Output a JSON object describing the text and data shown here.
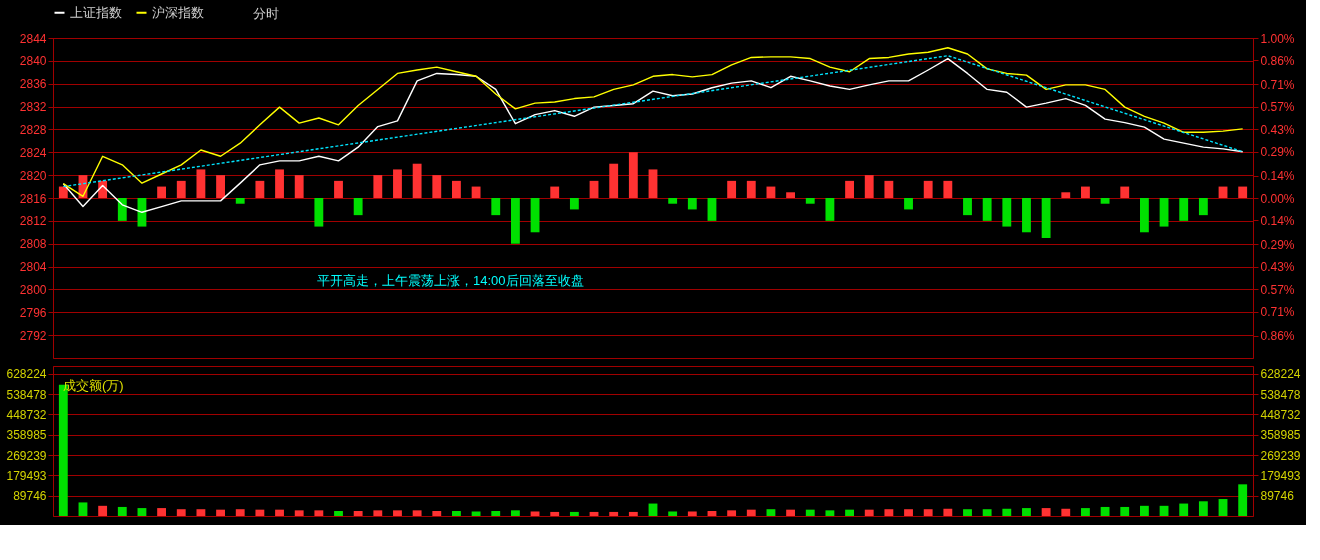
{
  "chart_data": [
    {
      "type": "line",
      "categories": [
        null,
        null,
        null,
        null,
        null,
        null,
        null,
        null,
        null,
        null,
        null,
        null,
        null,
        null,
        null,
        null,
        null,
        null,
        null,
        null,
        null,
        null,
        null,
        null,
        null,
        null,
        null,
        null,
        null,
        null,
        null,
        null,
        null,
        null,
        null,
        null,
        null,
        null,
        null,
        null,
        null,
        null,
        null,
        null,
        null,
        null,
        null,
        null,
        null,
        null,
        null,
        null,
        null,
        null,
        null,
        null,
        null,
        null,
        null,
        null,
        null
      ],
      "ylim": [
        2788,
        2844
      ],
      "yticks": [
        2792,
        2796,
        2800,
        2804,
        2808,
        2812,
        2816,
        2820,
        2824,
        2828,
        2832,
        2836,
        2840,
        2844
      ],
      "y2lim": [
        -1.0,
        1.0
      ],
      "y2ticks": [
        {
          "value": 1.0,
          "label": "1.00%"
        },
        {
          "value": 0.86,
          "label": "0.86%"
        },
        {
          "value": 0.71,
          "label": "0.71%"
        },
        {
          "value": 0.57,
          "label": "0.57%"
        },
        {
          "value": 0.43,
          "label": "0.43%"
        },
        {
          "value": 0.29,
          "label": "0.29%"
        },
        {
          "value": 0.14,
          "label": "0.14%"
        },
        {
          "value": 0,
          "label": "0.00%"
        },
        {
          "value": -0.14,
          "label": "0.14%"
        },
        {
          "value": -0.29,
          "label": "0.29%"
        },
        {
          "value": -0.43,
          "label": "0.43%"
        },
        {
          "value": -0.57,
          "label": "0.57%"
        },
        {
          "value": -0.71,
          "label": "0.71%"
        },
        {
          "value": -0.86,
          "label": "0.86%"
        }
      ],
      "grid": "y",
      "legend": "top",
      "tick_labels": "y",
      "annotations": [
        "分时",
        "平开高走，上午震荡上涨，14:00后回落至收盘"
      ],
      "series": [
        {
          "type": "bar",
          "base": [
            2816,
            2816,
            2816,
            2816,
            2816,
            2816,
            2816,
            2816,
            2816,
            2816,
            2816,
            2816,
            2816,
            2816,
            2816,
            2816,
            2816,
            2816,
            2816,
            2816,
            2816,
            2816,
            2816,
            2816,
            2816,
            2816,
            2816,
            2816,
            2816,
            2816,
            2816,
            2816,
            2816,
            2816,
            2816,
            2816,
            2816,
            2816,
            2816,
            2816,
            2816,
            2816,
            2816,
            2816,
            2816,
            2816,
            2816,
            2816,
            2816,
            2816,
            2816,
            2816,
            2816,
            2816,
            2816,
            2816,
            2816,
            2816,
            2816,
            2816,
            2816
          ],
          "values": [
            2,
            4,
            3,
            -4,
            -5,
            2,
            3,
            5,
            4,
            -1,
            3,
            5,
            4,
            -5,
            3,
            -3,
            4,
            5,
            6,
            4,
            3,
            2,
            -3,
            -8,
            -6,
            2,
            -2,
            3,
            6,
            8,
            5,
            -1,
            -2,
            -4,
            3,
            3,
            2,
            1,
            -1,
            -4,
            3,
            4,
            3,
            -2,
            3,
            3,
            -3,
            -4,
            -5,
            -6,
            -7,
            1,
            2,
            -1,
            2,
            -6,
            -5,
            -4,
            -3,
            2,
            2
          ],
          "colors": [
            "#ff3232",
            "#ff3232",
            "#ff3232",
            "#00e000",
            "#00e000",
            "#ff3232",
            "#ff3232",
            "#ff3232",
            "#ff3232",
            "#00e000",
            "#ff3232",
            "#ff3232",
            "#ff3232",
            "#00e000",
            "#ff3232",
            "#00e000",
            "#ff3232",
            "#ff3232",
            "#ff3232",
            "#ff3232",
            "#ff3232",
            "#ff3232",
            "#00e000",
            "#00e000",
            "#00e000",
            "#ff3232",
            "#00e000",
            "#ff3232",
            "#ff3232",
            "#ff3232",
            "#ff3232",
            "#00e000",
            "#00e000",
            "#00e000",
            "#ff3232",
            "#ff3232",
            "#ff3232",
            "#ff3232",
            "#00e000",
            "#00e000",
            "#ff3232",
            "#ff3232",
            "#ff3232",
            "#00e000",
            "#ff3232",
            "#ff3232",
            "#00e000",
            "#00e000",
            "#00e000",
            "#00e000",
            "#00e000",
            "#ff3232",
            "#ff3232",
            "#00e000",
            "#ff3232",
            "#00e000",
            "#00e000",
            "#00e000",
            "#00e000",
            "#ff3232",
            "#ff3232"
          ]
        },
        {
          "name": "上证指数",
          "color": "#ffffff",
          "values": [
            2818.5,
            2814.5,
            2818.2,
            2814.8,
            2813.5,
            2814.5,
            2815.5,
            2815.5,
            2815.5,
            2818.6,
            2821.8,
            2822.5,
            2822.5,
            2823.3,
            2822.5,
            2824.9,
            2828.5,
            2829.5,
            2836.5,
            2837.8,
            2837.6,
            2837.3,
            2835,
            2829,
            2830.6,
            2831.3,
            2830.3,
            2831.9,
            2832.2,
            2832.5,
            2834.7,
            2833.9,
            2834.2,
            2835.3,
            2836.1,
            2836.5,
            2835.3,
            2837.3,
            2836.5,
            2835.6,
            2835,
            2835.8,
            2836.5,
            2836.5,
            2838.4,
            2840.4,
            2837.8,
            2835,
            2834.5,
            2831.9,
            2832.6,
            2833.4,
            2832.2,
            2829.8,
            2829.2,
            2828.4,
            2826.3,
            2825.6,
            2824.9,
            2824.6,
            2824.1
          ]
        },
        {
          "name": "沪深指数",
          "color": "#ffff00",
          "values": [
            2818.5,
            2816.3,
            2823.3,
            2821.8,
            2818.6,
            2820.2,
            2821.8,
            2824.4,
            2823.3,
            2825.6,
            2828.8,
            2831.9,
            2829.1,
            2830,
            2828.8,
            2832.2,
            2835,
            2837.8,
            2838.4,
            2838.9,
            2838.1,
            2837.3,
            2834.2,
            2831.6,
            2832.6,
            2832.8,
            2833.4,
            2833.7,
            2835,
            2835.8,
            2837.3,
            2837.6,
            2837.2,
            2837.6,
            2839.3,
            2840.6,
            2840.7,
            2840.7,
            2840.4,
            2838.9,
            2838.1,
            2840.4,
            2840.6,
            2841.2,
            2841.5,
            2842.3,
            2841.2,
            2838.6,
            2837.8,
            2837.5,
            2835,
            2835.8,
            2835.8,
            2835,
            2831.9,
            2830.3,
            2829.1,
            2827.5,
            2827.5,
            2827.7,
            2828.1
          ]
        },
        {
          "type": "line",
          "color": "#00e5ff",
          "line_style": "dashed",
          "values": [
            2818,
            null,
            null,
            null,
            null,
            null,
            null,
            null,
            null,
            null,
            null,
            null,
            null,
            null,
            null,
            null,
            null,
            null,
            null,
            null,
            null,
            null,
            null,
            null,
            null,
            null,
            null,
            null,
            null,
            null,
            null,
            null,
            null,
            null,
            null,
            null,
            null,
            null,
            null,
            null,
            null,
            null,
            null,
            null,
            null,
            2840.9,
            null,
            null,
            null,
            null,
            null,
            null,
            null,
            null,
            null,
            null,
            null,
            null,
            null,
            null,
            2824.1
          ]
        }
      ]
    },
    {
      "type": "bar",
      "title": "成交额(万)",
      "categories": [
        null,
        null,
        null,
        null,
        null,
        null,
        null,
        null,
        null,
        null,
        null,
        null,
        null,
        null,
        null,
        null,
        null,
        null,
        null,
        null,
        null,
        null,
        null,
        null,
        null,
        null,
        null,
        null,
        null,
        null,
        null,
        null,
        null,
        null,
        null,
        null,
        null,
        null,
        null,
        null,
        null,
        null,
        null,
        null,
        null,
        null,
        null,
        null,
        null,
        null,
        null,
        null,
        null,
        null,
        null,
        null,
        null,
        null,
        null,
        null,
        null
      ],
      "ylim": [
        0,
        663000
      ],
      "yticks": [
        89746,
        179493,
        269239,
        358985,
        448732,
        538478,
        628224
      ],
      "y2lim": [
        0,
        663000
      ],
      "y2ticks": [
        89746,
        179493,
        269239,
        358985,
        448732,
        538478,
        628224
      ],
      "grid": "y",
      "tick_labels": "y",
      "values": [
        580000,
        60000,
        45000,
        40000,
        35000,
        35000,
        30000,
        30000,
        28000,
        30000,
        28000,
        28000,
        25000,
        25000,
        22000,
        22000,
        25000,
        25000,
        25000,
        22000,
        22000,
        20000,
        22000,
        25000,
        20000,
        18000,
        18000,
        18000,
        18000,
        18000,
        55000,
        20000,
        20000,
        22000,
        25000,
        28000,
        30000,
        28000,
        28000,
        25000,
        28000,
        28000,
        30000,
        30000,
        30000,
        32000,
        30000,
        30000,
        32000,
        35000,
        35000,
        32000,
        35000,
        40000,
        40000,
        45000,
        45000,
        55000,
        65000,
        75000,
        140000
      ],
      "colors": [
        "#00e000",
        "#00e000",
        "#ff3232",
        "#00e000",
        "#00e000",
        "#ff3232",
        "#ff3232",
        "#ff3232",
        "#ff3232",
        "#ff3232",
        "#ff3232",
        "#ff3232",
        "#ff3232",
        "#ff3232",
        "#00e000",
        "#ff3232",
        "#ff3232",
        "#ff3232",
        "#ff3232",
        "#ff3232",
        "#00e000",
        "#00e000",
        "#00e000",
        "#00e000",
        "#ff3232",
        "#ff3232",
        "#00e000",
        "#ff3232",
        "#ff3232",
        "#ff3232",
        "#00e000",
        "#00e000",
        "#ff3232",
        "#ff3232",
        "#ff3232",
        "#ff3232",
        "#00e000",
        "#ff3232",
        "#00e000",
        "#00e000",
        "#00e000",
        "#ff3232",
        "#ff3232",
        "#ff3232",
        "#ff3232",
        "#ff3232",
        "#00e000",
        "#00e000",
        "#00e000",
        "#00e000",
        "#ff3232",
        "#ff3232",
        "#00e000",
        "#00e000",
        "#00e000",
        "#00e000",
        "#00e000",
        "#00e000",
        "#00e000",
        "#00e000",
        "#00e000"
      ]
    }
  ]
}
